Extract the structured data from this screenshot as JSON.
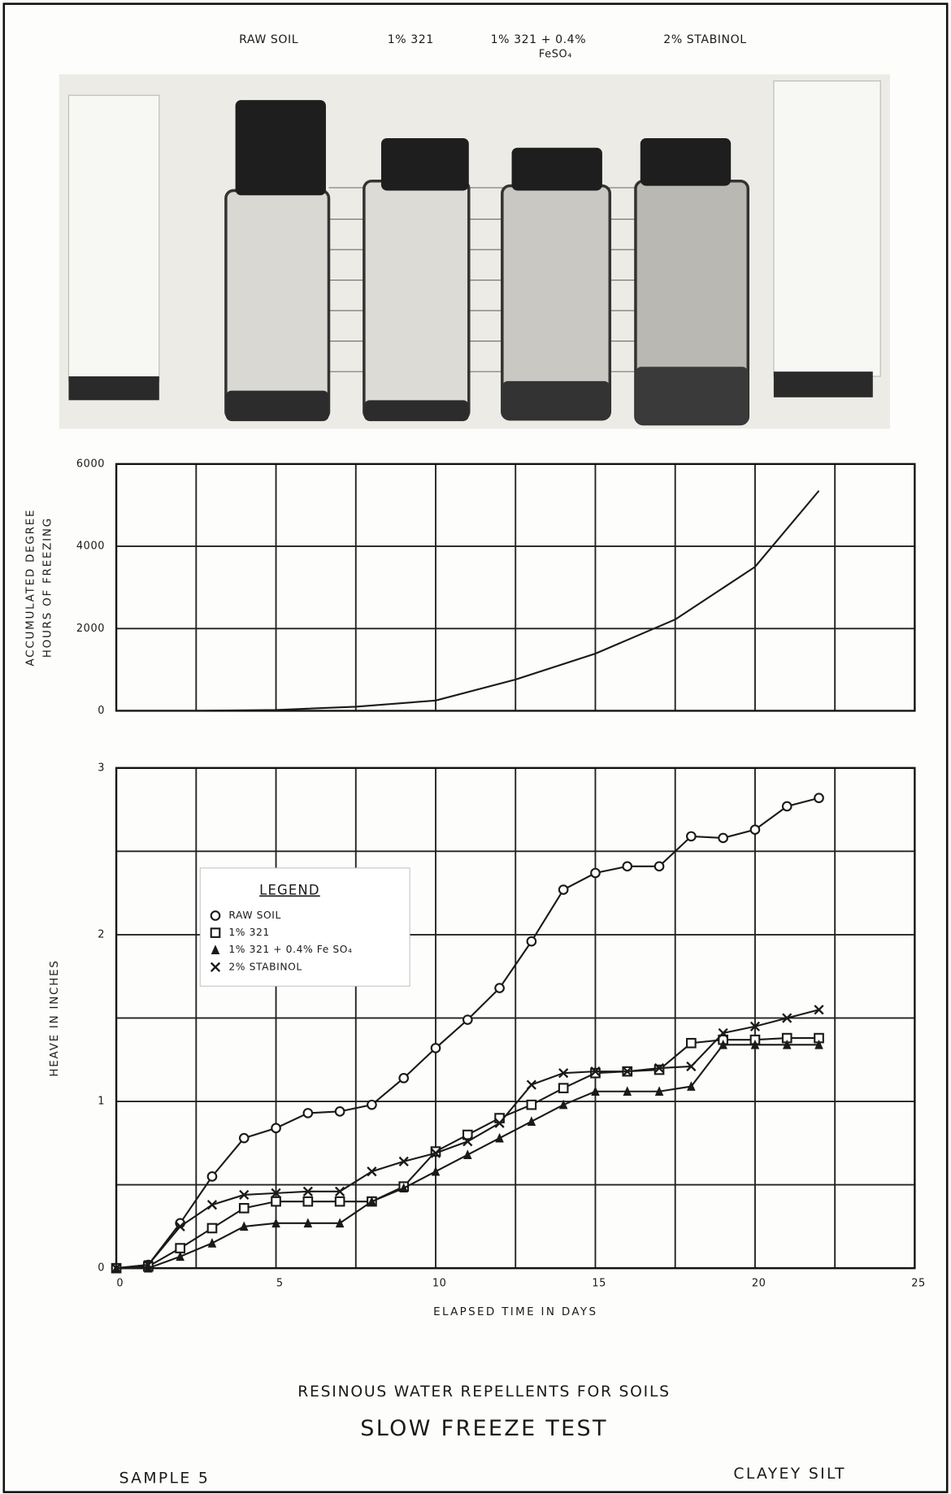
{
  "photo_labels": [
    "RAW SOIL",
    "1% 321",
    "1% 321 + 0.4%",
    "FeSO₄",
    "2% STABINOL"
  ],
  "chart_data": [
    {
      "type": "line",
      "ylabel": [
        "ACCUMULATED DEGREE",
        "HOURS OF FREEZING"
      ],
      "x": [
        0,
        2.5,
        5,
        7.5,
        10,
        12.5,
        15,
        17.5,
        20,
        22
      ],
      "values": [
        0,
        0,
        20,
        100,
        250,
        760,
        1390,
        2220,
        3500,
        5350
      ],
      "color": "#1a1a1a",
      "xlim": [
        0,
        25
      ],
      "ylim": [
        0,
        6000
      ],
      "xgrid": [
        0,
        2.5,
        5,
        7.5,
        10,
        12.5,
        15,
        17.5,
        20,
        22.5,
        25
      ],
      "yticks": [
        0,
        2000,
        4000,
        6000
      ],
      "grid": true
    },
    {
      "type": "line",
      "xlabel": "ELAPSED TIME IN DAYS",
      "ylabel": [
        "HEAVE IN INCHES"
      ],
      "legend_title": "LEGEND",
      "legend_position": "center left",
      "x": [
        0,
        1,
        2,
        3,
        4,
        5,
        6,
        7,
        8,
        9,
        10,
        11,
        12,
        13,
        14,
        15,
        16,
        17,
        18,
        19,
        20,
        21,
        22
      ],
      "series": [
        {
          "name": "RAW SOIL",
          "color": "#1a1a1a",
          "marker": "circle",
          "values": [
            0,
            0.02,
            0.27,
            0.55,
            0.78,
            0.84,
            0.93,
            0.94,
            0.98,
            1.14,
            1.32,
            1.49,
            1.68,
            1.96,
            2.27,
            2.37,
            2.41,
            2.41,
            2.59,
            2.58,
            2.63,
            2.77,
            2.82
          ]
        },
        {
          "name": "1% 321",
          "color": "#1a1a1a",
          "marker": "square",
          "values": [
            0,
            0.01,
            0.12,
            0.24,
            0.36,
            0.4,
            0.4,
            0.4,
            0.4,
            0.49,
            0.7,
            0.8,
            0.9,
            0.98,
            1.08,
            1.17,
            1.18,
            1.19,
            1.35,
            1.37,
            1.37,
            1.38,
            1.38
          ]
        },
        {
          "name": "1% 321 + 0.4% Fe SO₄",
          "color": "#1a1a1a",
          "marker": "triangle",
          "values": [
            0,
            0,
            0.07,
            0.15,
            0.25,
            0.27,
            0.27,
            0.27,
            0.4,
            0.48,
            0.58,
            0.68,
            0.78,
            0.88,
            0.98,
            1.06,
            1.06,
            1.06,
            1.09,
            1.34,
            1.34,
            1.34,
            1.34
          ]
        },
        {
          "name": "2% STABINOL",
          "color": "#1a1a1a",
          "marker": "x",
          "values": [
            0,
            0.02,
            0.25,
            0.38,
            0.44,
            0.45,
            0.46,
            0.46,
            0.58,
            0.64,
            0.69,
            0.76,
            0.87,
            1.1,
            1.17,
            1.18,
            1.18,
            1.2,
            1.21,
            1.41,
            1.45,
            1.5,
            1.55
          ]
        }
      ],
      "xlim": [
        0,
        25
      ],
      "ylim": [
        0,
        3
      ],
      "xticks": [
        0,
        5,
        10,
        15,
        20,
        25
      ],
      "yticks": [
        0,
        1,
        2,
        3
      ],
      "xgrid": [
        0,
        2.5,
        5,
        7.5,
        10,
        12.5,
        15,
        17.5,
        20,
        22.5,
        25
      ],
      "ygrid": [
        0,
        0.5,
        1,
        1.5,
        2,
        2.5,
        3
      ],
      "grid": true
    }
  ],
  "caption": "RESINOUS WATER REPELLENTS FOR SOILS",
  "title": "SLOW FREEZE TEST",
  "sample": "SAMPLE 5",
  "soil": "CLAYEY SILT"
}
